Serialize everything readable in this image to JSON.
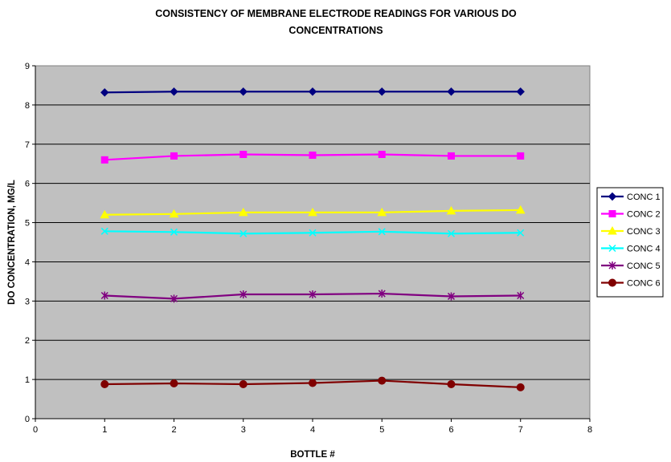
{
  "chart_data": {
    "type": "line",
    "title_line1": "CONSISTENCY OF MEMBRANE ELECTRODE READINGS FOR VARIOUS DO",
    "title_line2": "CONCENTRATIONS",
    "xlabel": "BOTTLE #",
    "ylabel": "DO CONCENTRATION, MG/L",
    "xlim": [
      0,
      8
    ],
    "ylim": [
      0,
      9
    ],
    "x_ticks": [
      "0",
      "1",
      "2",
      "3",
      "4",
      "5",
      "6",
      "7",
      "8"
    ],
    "y_ticks": [
      "0",
      "1",
      "2",
      "3",
      "4",
      "5",
      "6",
      "7",
      "8",
      "9"
    ],
    "x": [
      1,
      2,
      3,
      4,
      5,
      6,
      7
    ],
    "grid": "horizontal major gridlines",
    "plot_background": "#c0c0c0",
    "legend_position": "right",
    "series": [
      {
        "name": "CONC 1",
        "color": "#000080",
        "marker": "diamond",
        "values": [
          8.32,
          8.34,
          8.34,
          8.34,
          8.34,
          8.34,
          8.34
        ]
      },
      {
        "name": "CONC 2",
        "color": "#ff00ff",
        "marker": "square",
        "values": [
          6.6,
          6.7,
          6.74,
          6.72,
          6.74,
          6.7,
          6.7
        ]
      },
      {
        "name": "CONC 3",
        "color": "#ffff00",
        "marker": "triangle",
        "values": [
          5.2,
          5.22,
          5.26,
          5.26,
          5.26,
          5.3,
          5.32
        ]
      },
      {
        "name": "CONC 4",
        "color": "#00ffff",
        "marker": "x",
        "values": [
          4.78,
          4.76,
          4.72,
          4.74,
          4.77,
          4.72,
          4.74
        ]
      },
      {
        "name": "CONC 5",
        "color": "#800080",
        "marker": "star",
        "values": [
          3.14,
          3.06,
          3.17,
          3.17,
          3.19,
          3.12,
          3.14
        ]
      },
      {
        "name": "CONC 6",
        "color": "#800000",
        "marker": "circle",
        "values": [
          0.88,
          0.9,
          0.88,
          0.91,
          0.97,
          0.88,
          0.8
        ]
      }
    ]
  }
}
